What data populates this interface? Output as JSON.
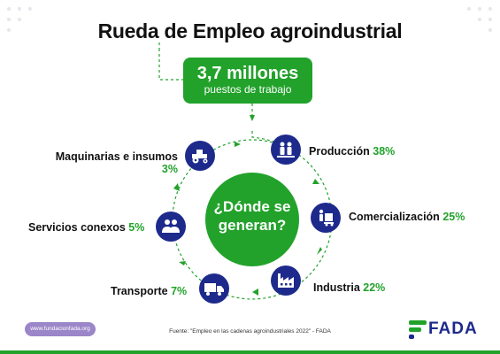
{
  "title": "Rueda de Empleo agroindustrial",
  "headline": {
    "value": "3,7 millones",
    "sub": "puestos de trabajo"
  },
  "hub": {
    "line1": "¿Dónde se",
    "line2": "generan?"
  },
  "sectors": [
    {
      "name": "Producción",
      "pct": "38%",
      "icon": "farmers-icon"
    },
    {
      "name": "Comercialización",
      "pct": "25%",
      "icon": "hand-truck-icon"
    },
    {
      "name": "Industria",
      "pct": "22%",
      "icon": "factory-icon"
    },
    {
      "name": "Transporte",
      "pct": "7%",
      "icon": "truck-icon"
    },
    {
      "name": "Servicios conexos",
      "pct": "5%",
      "icon": "people-icon"
    },
    {
      "name": "Maquinarias e insumos",
      "pct": "3%",
      "icon": "tractor-icon"
    }
  ],
  "source": "Fuente: \"Empleo en las cadenas agroindustriales 2022\" - FADA",
  "url": "www.fundacionfada.org",
  "logo": "FADA",
  "colors": {
    "green": "#22a22b",
    "navy": "#1d2a8c",
    "pill": "#9a86c8"
  }
}
